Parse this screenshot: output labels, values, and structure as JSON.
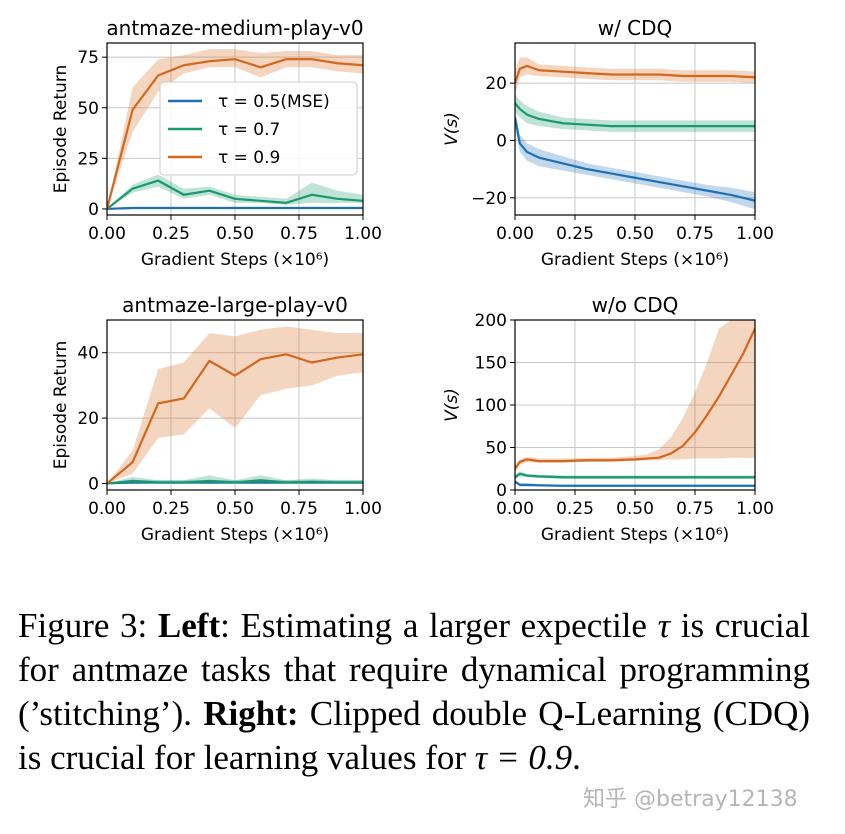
{
  "chart_data": [
    {
      "type": "line",
      "title": "antmaze-medium-play-v0",
      "xlabel": "Gradient Steps (×10⁶)",
      "ylabel": "Episode Return",
      "xlim": [
        0,
        1
      ],
      "ylim": [
        -3,
        82
      ],
      "xticks": [
        "0.00",
        "0.25",
        "0.50",
        "0.75",
        "1.00"
      ],
      "yticks": [
        "0",
        "25",
        "50",
        "75"
      ],
      "legend": "upper-center",
      "grid": true,
      "x": [
        0,
        0.1,
        0.2,
        0.3,
        0.4,
        0.5,
        0.6,
        0.7,
        0.8,
        0.9,
        1.0
      ],
      "series": [
        {
          "name": "τ = 0.5(MSE)",
          "color": "#1f6fb5",
          "values": [
            0,
            0.5,
            0.5,
            0.5,
            0.5,
            0.5,
            0.5,
            0.5,
            0.5,
            0.5,
            0.5
          ],
          "lower": [
            0,
            0,
            0,
            0,
            0,
            0,
            0,
            0,
            0,
            0,
            0
          ],
          "upper": [
            0,
            1,
            1,
            1,
            1,
            1,
            1,
            1,
            1,
            1,
            1
          ]
        },
        {
          "name": "τ = 0.7",
          "color": "#1a9a6c",
          "values": [
            0,
            10,
            14,
            7,
            9,
            5,
            4,
            3,
            7,
            5,
            4
          ],
          "lower": [
            0,
            8,
            11,
            5,
            7,
            3,
            3,
            2,
            3,
            3,
            3
          ],
          "upper": [
            0,
            12,
            17,
            10,
            11,
            7,
            6,
            5,
            13,
            9,
            7
          ]
        },
        {
          "name": "τ = 0.9",
          "color": "#d3671c",
          "values": [
            0,
            49,
            66,
            71,
            73,
            74,
            70,
            74,
            74,
            72,
            71
          ],
          "lower": [
            0,
            38,
            58,
            67,
            70,
            70,
            65,
            70,
            70,
            68,
            67
          ],
          "upper": [
            0,
            60,
            74,
            76,
            79,
            79,
            77,
            78,
            78,
            76,
            76
          ]
        }
      ]
    },
    {
      "type": "line",
      "title": "w/ CDQ",
      "xlabel": "Gradient Steps (×10⁶)",
      "ylabel": "V(s)",
      "xlim": [
        0,
        1
      ],
      "ylim": [
        -26,
        34
      ],
      "xticks": [
        "0.00",
        "0.25",
        "0.50",
        "0.75",
        "1.00"
      ],
      "yticks": [
        "−20",
        "0",
        "20"
      ],
      "grid": true,
      "x": [
        0,
        0.02,
        0.05,
        0.1,
        0.2,
        0.3,
        0.4,
        0.5,
        0.6,
        0.7,
        0.8,
        0.9,
        1.0
      ],
      "series": [
        {
          "name": "τ = 0.9",
          "color": "#d3671c",
          "values": [
            20,
            25,
            26,
            24.5,
            24,
            23.5,
            23,
            23,
            23,
            22.5,
            22.5,
            22.5,
            22
          ],
          "lower": [
            16,
            22,
            23,
            22.5,
            22,
            21.5,
            21,
            21,
            21,
            20.5,
            20.5,
            20.5,
            20
          ],
          "upper": [
            24,
            29,
            29,
            26.5,
            26,
            25.5,
            25,
            25,
            25,
            24.5,
            24.5,
            24.5,
            24
          ]
        },
        {
          "name": "τ = 0.7",
          "color": "#1a9a6c",
          "values": [
            13,
            11,
            9,
            7.5,
            6,
            5.5,
            5,
            5,
            5,
            5,
            5,
            5,
            5
          ],
          "lower": [
            10,
            8,
            6,
            5,
            4,
            3.5,
            3,
            3,
            3,
            3,
            3,
            3,
            3
          ],
          "upper": [
            16,
            14,
            12,
            10,
            8,
            7.5,
            7,
            7,
            7,
            7,
            7,
            7,
            7
          ]
        },
        {
          "name": "τ = 0.5(MSE)",
          "color": "#1f6fb5",
          "values": [
            8,
            -1,
            -4,
            -6,
            -8,
            -10,
            -11.5,
            -13,
            -14.5,
            -16,
            -17.5,
            -19,
            -21
          ],
          "lower": [
            5,
            -4,
            -7,
            -9,
            -10.5,
            -12,
            -13.5,
            -15,
            -16.5,
            -18,
            -19.5,
            -21.5,
            -24
          ],
          "upper": [
            11,
            2,
            -1,
            -3,
            -5.5,
            -8,
            -9.5,
            -11,
            -12.5,
            -14,
            -15.5,
            -16.5,
            -18
          ]
        }
      ]
    },
    {
      "type": "line",
      "title": "antmaze-large-play-v0",
      "xlabel": "Gradient Steps (×10⁶)",
      "ylabel": "Episode Return",
      "xlim": [
        0,
        1
      ],
      "ylim": [
        -2,
        50
      ],
      "xticks": [
        "0.00",
        "0.25",
        "0.50",
        "0.75",
        "1.00"
      ],
      "yticks": [
        "0",
        "20",
        "40"
      ],
      "grid": true,
      "x": [
        0,
        0.1,
        0.2,
        0.3,
        0.4,
        0.5,
        0.6,
        0.7,
        0.8,
        0.9,
        1.0
      ],
      "series": [
        {
          "name": "τ = 0.5(MSE)",
          "color": "#1f6fb5",
          "values": [
            0,
            0.3,
            0.3,
            0.3,
            0.3,
            0.3,
            0.3,
            0.3,
            0.3,
            0.3,
            0.3
          ],
          "lower": [
            0,
            0,
            0,
            0,
            0,
            0,
            0,
            0,
            0,
            0,
            0
          ],
          "upper": [
            0,
            1,
            1,
            1,
            1,
            1,
            1,
            1,
            1,
            1,
            1
          ]
        },
        {
          "name": "τ = 0.7",
          "color": "#1a9a6c",
          "values": [
            0,
            0.8,
            0.3,
            0.3,
            0.8,
            0.3,
            1,
            0.3,
            0.5,
            0.3,
            0.3
          ],
          "lower": [
            0,
            0,
            0,
            0,
            0,
            0,
            0,
            0,
            0,
            0,
            0
          ],
          "upper": [
            0,
            2,
            1,
            1,
            2.5,
            1,
            2.5,
            1,
            1.5,
            1,
            1
          ]
        },
        {
          "name": "τ = 0.9",
          "color": "#d3671c",
          "values": [
            0,
            6.5,
            24.5,
            26,
            37.5,
            33,
            38,
            39.5,
            37,
            38.5,
            39.5
          ],
          "lower": [
            0,
            3,
            14,
            15,
            23,
            17,
            27,
            29,
            30,
            33,
            34
          ],
          "upper": [
            0,
            10,
            35,
            37,
            46,
            45,
            47,
            48,
            47,
            46,
            46
          ]
        }
      ]
    },
    {
      "type": "line",
      "title": "w/o CDQ",
      "xlabel": "Gradient Steps (×10⁶)",
      "ylabel": "V(s)",
      "xlim": [
        0,
        1
      ],
      "ylim": [
        0,
        200
      ],
      "xticks": [
        "0.00",
        "0.25",
        "0.50",
        "0.75",
        "1.00"
      ],
      "yticks": [
        "0",
        "50",
        "100",
        "150",
        "200"
      ],
      "grid": true,
      "x": [
        0,
        0.02,
        0.05,
        0.1,
        0.2,
        0.3,
        0.4,
        0.5,
        0.55,
        0.6,
        0.65,
        0.7,
        0.75,
        0.8,
        0.85,
        0.9,
        0.95,
        1.0
      ],
      "series": [
        {
          "name": "τ = 0.9",
          "color": "#d3671c",
          "values": [
            25,
            33,
            36,
            34,
            34,
            35,
            35,
            36,
            37,
            38,
            43,
            52,
            68,
            88,
            110,
            135,
            160,
            190
          ],
          "lower": [
            20,
            30,
            33,
            32,
            32,
            33,
            33,
            34,
            35,
            35,
            36,
            36,
            37,
            37,
            37,
            38,
            38,
            38
          ],
          "upper": [
            30,
            36,
            39,
            37,
            37,
            38,
            38,
            40,
            42,
            48,
            62,
            85,
            115,
            150,
            190,
            200,
            200,
            200
          ]
        },
        {
          "name": "τ = 0.7",
          "color": "#1a9a6c",
          "values": [
            15,
            19,
            17,
            16,
            15,
            15,
            15,
            15,
            15,
            15,
            15,
            15,
            15,
            15,
            15,
            15,
            15,
            15
          ],
          "lower": [
            12,
            16,
            15,
            14,
            13,
            13,
            13,
            13,
            13,
            13,
            13,
            13,
            13,
            13,
            13,
            13,
            13,
            13
          ],
          "upper": [
            18,
            22,
            19,
            18,
            17,
            17,
            17,
            17,
            17,
            17,
            17,
            17,
            17,
            17,
            17,
            17,
            17,
            17
          ]
        },
        {
          "name": "τ = 0.5(MSE)",
          "color": "#1f6fb5",
          "values": [
            10,
            6,
            6,
            5.5,
            5,
            5,
            5,
            5,
            5,
            5,
            5,
            5,
            5,
            5,
            5,
            5,
            5,
            5
          ],
          "lower": [
            8,
            4,
            4,
            4,
            4,
            4,
            4,
            4,
            4,
            4,
            4,
            4,
            4,
            4,
            4,
            4,
            4,
            4
          ],
          "upper": [
            12,
            8,
            8,
            7,
            6,
            6,
            6,
            6,
            6,
            6,
            6,
            6,
            6,
            6,
            6,
            6,
            6,
            6
          ]
        }
      ]
    }
  ],
  "caption": {
    "label": "Figure 3:",
    "left_bold": "Left",
    "left_text": ": Estimating a larger expectile",
    "tau": "τ",
    "left_text2": "is crucial for antmaze tasks that require dynamical programming (’stitching’).",
    "right_bold": "Right:",
    "right_text": "Clipped double Q-Learning (CDQ) is crucial for learning values for",
    "eq": "τ = 0.9",
    "end": "."
  },
  "watermark": "知乎 @betray12138"
}
